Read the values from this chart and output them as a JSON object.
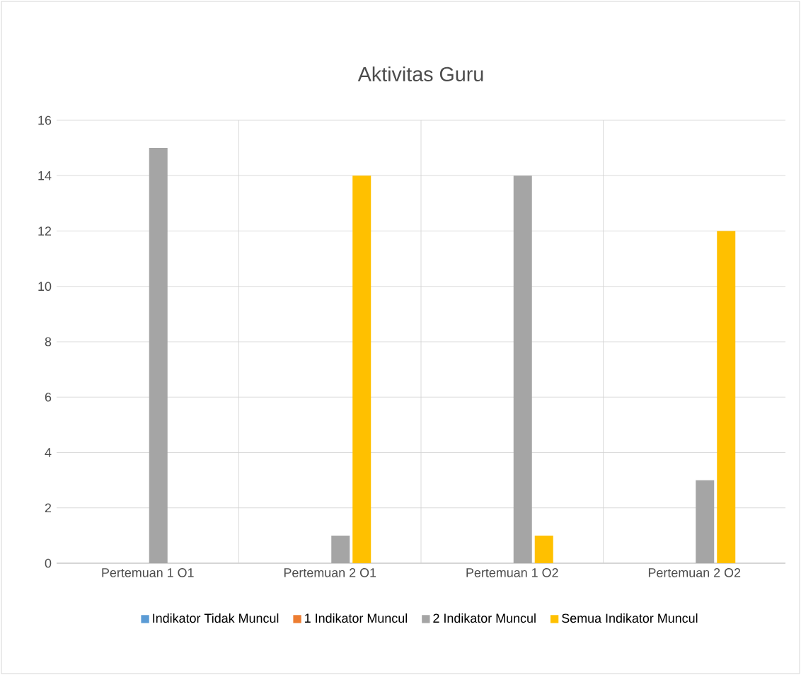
{
  "chart_data": {
    "type": "bar",
    "title": "Aktivitas Guru",
    "categories": [
      "Pertemuan 1 O1",
      "Pertemuan 2 O1",
      "Pertemuan 1 O2",
      "Pertemuan 2 O2"
    ],
    "series": [
      {
        "name": "Indikator Tidak Muncul",
        "color": "#5b9bd5",
        "values": [
          0,
          0,
          0,
          0
        ]
      },
      {
        "name": "1 Indikator Muncul",
        "color": "#ed7d31",
        "values": [
          0,
          0,
          0,
          0
        ]
      },
      {
        "name": "2 Indikator Muncul",
        "color": "#a5a5a5",
        "values": [
          15,
          1,
          14,
          3
        ]
      },
      {
        "name": "Semua Indikator Muncul",
        "color": "#ffc000",
        "values": [
          0,
          14,
          1,
          12
        ]
      }
    ],
    "ylim": [
      0,
      16
    ],
    "yticks": [
      0,
      2,
      4,
      6,
      8,
      10,
      12,
      14,
      16
    ],
    "grid": true,
    "legend": "bottom"
  }
}
